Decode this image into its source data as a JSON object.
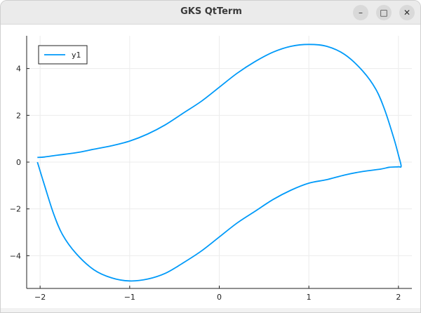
{
  "window": {
    "title": "GKS QtTerm",
    "buttons": {
      "minimize": "–",
      "maximize": "□",
      "close": "✕"
    }
  },
  "chart_data": {
    "type": "line",
    "title": "",
    "xlabel": "",
    "ylabel": "",
    "xlim": [
      -2.15,
      2.15
    ],
    "ylim": [
      -5.4,
      5.4
    ],
    "xticks": [
      -2,
      -1,
      0,
      1,
      2
    ],
    "yticks": [
      -4,
      -2,
      0,
      2,
      4
    ],
    "xtick_labels": [
      "−2",
      "−1",
      "0",
      "1",
      "2"
    ],
    "ytick_labels": [
      "−4",
      "−2",
      "0",
      "2",
      "4"
    ],
    "grid": true,
    "legend_position": "top-left",
    "series": [
      {
        "name": "y1",
        "color": "#009af9",
        "x": [
          -2.03,
          -1.95,
          -1.8,
          -1.6,
          -1.4,
          -1.2,
          -1.0,
          -0.8,
          -0.6,
          -0.4,
          -0.2,
          0.0,
          0.2,
          0.4,
          0.6,
          0.8,
          1.0,
          1.2,
          1.4,
          1.6,
          1.75,
          1.85,
          1.95,
          2.0,
          2.03,
          2.0,
          1.9,
          1.8,
          1.6,
          1.4,
          1.2,
          1.0,
          0.8,
          0.6,
          0.4,
          0.2,
          0.0,
          -0.2,
          -0.4,
          -0.6,
          -0.8,
          -1.0,
          -1.2,
          -1.4,
          -1.6,
          -1.75,
          -1.85,
          -1.95,
          -2.03
        ],
        "y": [
          0.2,
          0.22,
          0.3,
          0.4,
          0.55,
          0.7,
          0.9,
          1.2,
          1.6,
          2.1,
          2.6,
          3.2,
          3.8,
          4.3,
          4.7,
          4.95,
          5.03,
          4.95,
          4.6,
          3.9,
          3.1,
          2.2,
          1.0,
          0.3,
          -0.17,
          -0.2,
          -0.22,
          -0.3,
          -0.4,
          -0.55,
          -0.75,
          -0.9,
          -1.2,
          -1.6,
          -2.1,
          -2.6,
          -3.2,
          -3.8,
          -4.3,
          -4.75,
          -5.0,
          -5.08,
          -4.95,
          -4.6,
          -3.9,
          -3.1,
          -2.2,
          -1.0,
          0.0
        ]
      }
    ]
  }
}
